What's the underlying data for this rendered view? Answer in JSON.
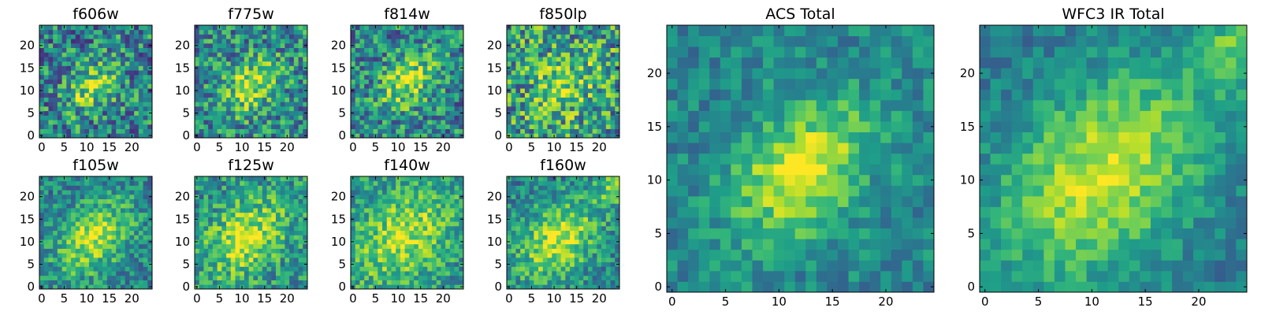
{
  "chart_data": {
    "type": "heatmap",
    "colormap": "viridis",
    "grid_size": 25,
    "panels": [
      {
        "title": "f606w",
        "x_ticks": [
          0,
          5,
          10,
          15,
          20
        ],
        "y_ticks": [
          0,
          5,
          10,
          15,
          20
        ],
        "peak": [
          11.5,
          11.0
        ],
        "noise": 0.33,
        "blob_sigma": 3.0,
        "base": 0.45,
        "amp": 0.42,
        "seed": 11
      },
      {
        "title": "f775w",
        "x_ticks": [
          0,
          5,
          10,
          15,
          20
        ],
        "y_ticks": [
          0,
          5,
          10,
          15,
          20
        ],
        "peak": [
          12.0,
          11.0
        ],
        "noise": 0.3,
        "blob_sigma": 3.2,
        "base": 0.48,
        "amp": 0.42,
        "seed": 23
      },
      {
        "title": "f814w",
        "x_ticks": [
          0,
          5,
          10,
          15,
          20
        ],
        "y_ticks": [
          0,
          5,
          10,
          15,
          20
        ],
        "peak": [
          12.0,
          12.0
        ],
        "noise": 0.3,
        "blob_sigma": 3.4,
        "base": 0.46,
        "amp": 0.42,
        "seed": 37
      },
      {
        "title": "f850lp",
        "x_ticks": [
          0,
          5,
          10,
          15,
          20
        ],
        "y_ticks": [
          0,
          5,
          10,
          15,
          20
        ],
        "peak": [
          12.0,
          11.0
        ],
        "noise": 0.36,
        "blob_sigma": 3.6,
        "base": 0.55,
        "amp": 0.3,
        "seed": 41
      },
      {
        "title": "f105w",
        "x_ticks": [
          0,
          5,
          10,
          15,
          20
        ],
        "y_ticks": [
          0,
          5,
          10,
          15,
          20
        ],
        "peak": [
          11.5,
          11.0
        ],
        "noise": 0.22,
        "blob_sigma": 4.5,
        "base": 0.45,
        "amp": 0.45,
        "seed": 53
      },
      {
        "title": "f125w",
        "x_ticks": [
          0,
          5,
          10,
          15,
          20
        ],
        "y_ticks": [
          0,
          5,
          10,
          15,
          20
        ],
        "peak": [
          11.0,
          11.0
        ],
        "noise": 0.24,
        "blob_sigma": 5.0,
        "base": 0.5,
        "amp": 0.4,
        "seed": 67
      },
      {
        "title": "f140w",
        "x_ticks": [
          0,
          5,
          10,
          15,
          20
        ],
        "y_ticks": [
          0,
          5,
          10,
          15,
          20
        ],
        "peak": [
          11.0,
          11.0
        ],
        "noise": 0.22,
        "blob_sigma": 5.5,
        "base": 0.52,
        "amp": 0.38,
        "seed": 79
      },
      {
        "title": "f160w",
        "x_ticks": [
          0,
          5,
          10,
          15,
          20
        ],
        "y_ticks": [
          0,
          5,
          10,
          15,
          20
        ],
        "peak": [
          11.0,
          10.5
        ],
        "noise": 0.22,
        "blob_sigma": 5.0,
        "base": 0.45,
        "amp": 0.45,
        "seed": 97
      },
      {
        "title": "ACS Total",
        "x_ticks": [
          0,
          5,
          10,
          15,
          20
        ],
        "y_ticks": [
          0,
          5,
          10,
          15,
          20
        ],
        "peak": [
          12.0,
          11.0
        ],
        "noise": 0.16,
        "blob_sigma": 3.6,
        "base": 0.46,
        "amp": 0.48,
        "seed": 101
      },
      {
        "title": "WFC3 IR Total",
        "x_ticks": [
          0,
          5,
          10,
          15,
          20
        ],
        "y_ticks": [
          0,
          5,
          10,
          15,
          20
        ],
        "peak": [
          11.0,
          10.5
        ],
        "noise": 0.13,
        "blob_sigma": 5.5,
        "base": 0.4,
        "amp": 0.52,
        "seed": 113
      }
    ]
  }
}
